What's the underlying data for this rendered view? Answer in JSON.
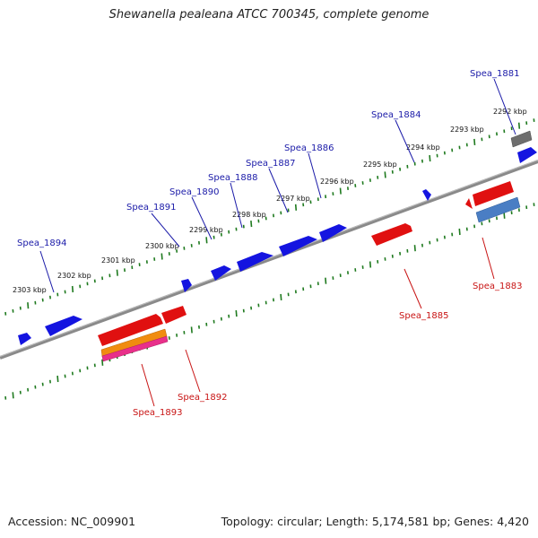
{
  "title": "Shewanella pealeana ATCC 700345, complete genome",
  "footer": {
    "accession": "Accession: NC_009901",
    "summary": "Topology: circular; Length: 5,174,581 bp; Genes: 4,420"
  },
  "colors": {
    "forward_gene": "#1414e0",
    "reverse_gene": "#e01010",
    "backbone": "#8a8a8a",
    "ruler": "#1f7a1f",
    "forward_label": "#1a1aa8",
    "reverse_label": "#c81414"
  },
  "tick_labels": [
    "2303 kbp",
    "2302 kbp",
    "2301 kbp",
    "2300 kbp",
    "2299 kbp",
    "2298 kbp",
    "2297 kbp",
    "2296 kbp",
    "2295 kbp",
    "2294 kbp",
    "2293 kbp",
    "2292 kbp"
  ],
  "gene_labels": {
    "spea_1894": "Spea_1894",
    "spea_1891": "Spea_1891",
    "spea_1890": "Spea_1890",
    "spea_1888": "Spea_1888",
    "spea_1887": "Spea_1887",
    "spea_1886": "Spea_1886",
    "spea_1884": "Spea_1884",
    "spea_1881": "Spea_1881",
    "spea_1893": "Spea_1893",
    "spea_1892": "Spea_1892",
    "spea_1885": "Spea_1885",
    "spea_1883": "Spea_1883"
  }
}
